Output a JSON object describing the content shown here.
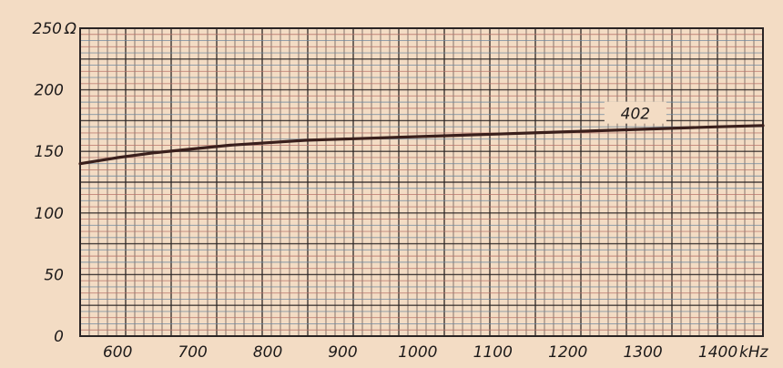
{
  "chart_data": {
    "type": "line",
    "xlim": [
      550,
      1460
    ],
    "ylim": [
      0,
      250
    ],
    "x_ticks": [
      {
        "value": 600,
        "label": "600"
      },
      {
        "value": 700,
        "label": "700"
      },
      {
        "value": 800,
        "label": "800"
      },
      {
        "value": 900,
        "label": "900"
      },
      {
        "value": 1000,
        "label": "1000"
      },
      {
        "value": 1100,
        "label": "1100"
      },
      {
        "value": 1200,
        "label": "1200"
      },
      {
        "value": 1300,
        "label": "1300"
      },
      {
        "value": 1400,
        "label": "1400"
      }
    ],
    "y_ticks": [
      {
        "value": 0,
        "label": "0"
      },
      {
        "value": 50,
        "label": "50"
      },
      {
        "value": 100,
        "label": "100"
      },
      {
        "value": 150,
        "label": "150"
      },
      {
        "value": 200,
        "label": "200"
      },
      {
        "value": 250,
        "label": "250"
      }
    ],
    "x_unit": "kHz",
    "y_unit": "Ω",
    "grid": true,
    "series": [
      {
        "name": "402",
        "x": [
          550,
          600,
          650,
          700,
          750,
          800,
          850,
          900,
          1000,
          1100,
          1200,
          1300,
          1400,
          1460
        ],
        "y": [
          140,
          145,
          149,
          152,
          155,
          157,
          159,
          160,
          162,
          164,
          166,
          168,
          170,
          171
        ]
      }
    ],
    "annotation": {
      "text": "402",
      "x": 1290,
      "y": 180
    },
    "colors": {
      "background": "#f3dcc4",
      "grid_frame": "#2a2424",
      "grid_red": "#b8736a",
      "grid_blue": "#6f8aa0",
      "curve": "#3a1f1c"
    }
  }
}
